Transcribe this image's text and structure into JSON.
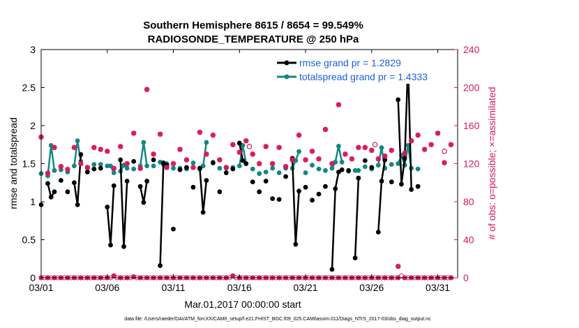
{
  "colors": {
    "rmse": "#000000",
    "spread": "#138684",
    "obs": "#d6185b",
    "legend_text": "#1a5fe0",
    "axis": "#000000"
  },
  "chart_data": {
    "type": "line",
    "title": "Southern Hemisphere 8615 / 8654 = 99.549%",
    "subtitle": "RADIOSONDE_TEMPERATURE @ 250 hPa",
    "xlabel": "Mar.01,2017 00:00:00 start",
    "ylabel": "rmse and totalspread",
    "y2label": "# of obs: o=possible; ×=assimilated",
    "footer": "data file: /Users/raeder/DAI/ATM_forcXX/CAM6_setup/f.e21.FHIST_BGC.f09_025.CAM6assim.011/Diags_NTrS_2017-03/obs_diag_output.nc",
    "xlim": [
      0,
      31.5
    ],
    "ylim": [
      0,
      3
    ],
    "y2lim": [
      0,
      240
    ],
    "x_ticks": [
      0,
      5,
      10,
      15,
      20,
      25,
      30
    ],
    "x_tick_labels": [
      "03/01",
      "03/06",
      "03/11",
      "03/16",
      "03/21",
      "03/26",
      "03/31"
    ],
    "y_ticks": [
      0,
      0.5,
      1,
      1.5,
      2,
      2.5,
      3
    ],
    "y_tick_labels": [
      "0",
      "0.5",
      "1",
      "1.5",
      "2",
      "2.5",
      "3"
    ],
    "y2_ticks": [
      0,
      40,
      80,
      120,
      160,
      200,
      240
    ],
    "y2_tick_labels": [
      "0",
      "40",
      "80",
      "120",
      "160",
      "200",
      "240"
    ],
    "legend": [
      {
        "key": "rmse",
        "label": "rmse grand pr = 1.2829"
      },
      {
        "key": "spread",
        "label": "totalspread grand pr = 1.4333"
      }
    ],
    "x": [
      0,
      0.25,
      0.5,
      0.75,
      1,
      1.25,
      1.5,
      1.75,
      2,
      2.25,
      2.5,
      2.75,
      3,
      3.25,
      3.5,
      3.75,
      4,
      4.25,
      4.5,
      4.75,
      5,
      5.25,
      5.5,
      5.75,
      6,
      6.25,
      6.5,
      6.75,
      7,
      7.25,
      7.5,
      7.75,
      8,
      8.25,
      8.5,
      8.75,
      9,
      9.25,
      9.5,
      9.75,
      10,
      10.25,
      10.5,
      10.75,
      11,
      11.25,
      11.5,
      11.75,
      12,
      12.25,
      12.5,
      12.75,
      13,
      13.25,
      13.5,
      13.75,
      14,
      14.25,
      14.5,
      14.75,
      15,
      15.25,
      15.5,
      15.75,
      16,
      16.25,
      16.5,
      16.75,
      17,
      17.25,
      17.5,
      17.75,
      18,
      18.25,
      18.5,
      18.75,
      19,
      19.25,
      19.5,
      19.75,
      20,
      20.25,
      20.5,
      20.75,
      21,
      21.25,
      21.5,
      21.75,
      22,
      22.25,
      22.5,
      22.75,
      23,
      23.25,
      23.5,
      23.75,
      24,
      24.25,
      24.5,
      24.75,
      25,
      25.25,
      25.5,
      25.75,
      26,
      26.25,
      26.5,
      26.75,
      27,
      27.25,
      27.5,
      27.75,
      28,
      28.25,
      28.5,
      28.75,
      29,
      29.25,
      29.5,
      29.75,
      30,
      30.25,
      30.5,
      30.75,
      31
    ],
    "rmse": [
      0.96,
      null,
      1.24,
      1.06,
      1.13,
      null,
      1.28,
      null,
      1.13,
      null,
      1.25,
      0.96,
      1.62,
      null,
      1.39,
      null,
      1.43,
      null,
      1.44,
      null,
      0.93,
      0.43,
      1.21,
      null,
      1.55,
      0.41,
      1.27,
      null,
      1.53,
      null,
      1.2,
      0.99,
      1.27,
      null,
      1.55,
      null,
      0.16,
      1.51,
      1.48,
      null,
      0.64,
      null,
      1.42,
      null,
      1.45,
      null,
      1.19,
      null,
      1.44,
      0.86,
      1.28,
      null,
      1.51,
      null,
      1.13,
      null,
      1.38,
      null,
      1.43,
      null,
      1.77,
      1.54,
      1.5,
      null,
      1.26,
      null,
      1.13,
      null,
      1.27,
      null,
      1.04,
      null,
      1.03,
      null,
      1.33,
      null,
      1.57,
      0.44,
      1.14,
      null,
      1.19,
      null,
      1.02,
      null,
      1.1,
      null,
      1.2,
      null,
      0.11,
      1.17,
      1.39,
      1.42,
      null,
      1.41,
      null,
      0.26,
      1.31,
      null,
      1.54,
      null,
      1.45,
      null,
      0.6,
      1.27,
      1.55,
      null,
      1.26,
      null,
      2.34,
      1.23,
      1.57,
      2.83,
      1.16,
      null,
      1.2
    ],
    "spread": [
      1.37,
      null,
      1.34,
      1.74,
      1.41,
      null,
      1.42,
      null,
      1.39,
      null,
      1.47,
      1.8,
      1.53,
      null,
      1.44,
      null,
      1.49,
      null,
      1.49,
      null,
      1.47,
      1.47,
      1.38,
      null,
      1.4,
      1.48,
      1.44,
      null,
      1.43,
      null,
      1.47,
      1.78,
      1.47,
      null,
      1.47,
      null,
      1.52,
      1.49,
      1.5,
      null,
      1.44,
      null,
      1.44,
      null,
      1.43,
      null,
      1.51,
      null,
      1.43,
      1.47,
      1.78,
      null,
      1.52,
      null,
      1.44,
      null,
      1.44,
      null,
      1.45,
      null,
      1.47,
      1.74,
      1.5,
      null,
      1.43,
      null,
      1.37,
      null,
      1.39,
      null,
      1.44,
      null,
      1.38,
      null,
      1.44,
      null,
      1.44,
      1.54,
      1.66,
      null,
      1.38,
      null,
      1.48,
      null,
      1.43,
      null,
      1.41,
      null,
      1.44,
      1.52,
      1.73,
      1.52,
      null,
      1.4,
      null,
      1.41,
      1.41,
      null,
      1.46,
      null,
      1.43,
      null,
      1.48,
      1.71,
      1.44,
      null,
      1.49,
      null,
      1.5,
      1.61,
      1.48,
      1.74,
      1.44,
      null,
      1.43
    ],
    "obs_possible": [
      null,
      null,
      null,
      null,
      null,
      null,
      null,
      null,
      null,
      null,
      null,
      null,
      null,
      null,
      null,
      null,
      null,
      null,
      null,
      null,
      null,
      null,
      null,
      null,
      null,
      null,
      null,
      null,
      null,
      null,
      null,
      null,
      null,
      null,
      null,
      null,
      null,
      null,
      null,
      null,
      null,
      null,
      null,
      null,
      null,
      null,
      null,
      null,
      null,
      null,
      null,
      null,
      null,
      null,
      null,
      null,
      null,
      null,
      null,
      null,
      null,
      null,
      null,
      138,
      null,
      null,
      null,
      null,
      null,
      null,
      null,
      null,
      null,
      null,
      null,
      null,
      null,
      null,
      null,
      null,
      null,
      null,
      null,
      null,
      null,
      null,
      null,
      null,
      null,
      null,
      null,
      null,
      null,
      null,
      null,
      null,
      null,
      null,
      null,
      null,
      null,
      140,
      null,
      null,
      null,
      null,
      null,
      null,
      null,
      null,
      null,
      null,
      null,
      null,
      null,
      null,
      null,
      null,
      null,
      null,
      null,
      null,
      133
    ],
    "obs_assimilated": [
      148,
      null,
      110,
      137,
      null,
      null,
      117,
      null,
      null,
      null,
      114,
      137,
      null,
      null,
      136,
      null,
      null,
      null,
      135,
      null,
      133,
      null,
      138,
      null,
      null,
      null,
      null,
      null,
      152,
      null,
      null,
      null,
      null,
      198,
      null,
      null,
      null,
      null,
      null,
      null,
      null,
      null,
      null,
      null,
      null,
      null,
      null,
      null,
      null,
      null,
      null,
      null,
      null,
      null,
      null,
      null,
      null,
      null,
      null,
      null,
      null,
      null,
      null,
      null,
      null,
      null,
      null,
      null,
      null,
      null,
      null,
      null,
      null,
      null,
      null,
      null,
      null,
      null,
      null,
      null,
      null,
      null,
      null,
      null,
      null,
      null,
      null,
      null,
      null,
      null,
      null,
      null,
      null,
      null,
      null,
      null,
      null,
      null,
      null,
      null,
      null,
      null,
      null,
      null,
      null,
      null,
      null,
      null,
      null,
      null,
      null,
      null,
      null,
      null,
      null,
      null,
      null,
      null,
      null,
      null,
      null,
      null,
      null,
      null,
      null
    ],
    "obs_nonzero_x": [
      0,
      0.5,
      1,
      1.5,
      2,
      2.5,
      3,
      3.5,
      4,
      4.5,
      5,
      5.5,
      6,
      6.5,
      7,
      7.5,
      8,
      8.5,
      9,
      9.5,
      10,
      10.5,
      11,
      11.5,
      12,
      12.5,
      13,
      13.5,
      14,
      14.5,
      15,
      15.5,
      16,
      16.5,
      17,
      17.5,
      18,
      18.5,
      19,
      19.5,
      20,
      20.5,
      21,
      21.5,
      22,
      22.5,
      23,
      23.5,
      24,
      24.5,
      25,
      25.5,
      26,
      26.5,
      27,
      27.5,
      28,
      28.5,
      29,
      29.5,
      30,
      30.5,
      31
    ],
    "obs_nonzero_y": [
      148,
      110,
      137,
      117,
      114,
      137,
      120,
      116,
      137,
      135,
      133,
      115,
      138,
      120,
      152,
      115,
      198,
      130,
      151,
      116,
      120,
      135,
      124,
      116,
      153,
      130,
      150,
      124,
      116,
      140,
      132,
      144,
      130,
      120,
      138,
      120,
      137,
      117,
      124,
      150,
      124,
      133,
      125,
      156,
      120,
      182,
      130,
      125,
      137,
      137,
      134,
      125,
      128,
      134,
      12,
      131,
      144,
      150,
      135,
      140,
      152,
      121,
      140
    ],
    "obs_zero_x": [
      0,
      0.25,
      0.5,
      0.75,
      1,
      1.25,
      1.5,
      1.75,
      2,
      2.25,
      2.5,
      2.75,
      3,
      3.25,
      3.5,
      3.75,
      4,
      4.25,
      4.5,
      4.75,
      5,
      5.25,
      5.5,
      5.75,
      6,
      6.25,
      6.5,
      6.75,
      7,
      7.25,
      7.5,
      7.75,
      8,
      8.25,
      8.5,
      8.75,
      9,
      9.25,
      9.5,
      9.75,
      10,
      10.25,
      10.5,
      10.75,
      11,
      11.25,
      11.5,
      11.75,
      12,
      12.25,
      12.5,
      12.75,
      13,
      13.25,
      13.5,
      13.75,
      14,
      14.25,
      14.5,
      14.75,
      15,
      15.25,
      15.5,
      15.75,
      16,
      16.25,
      16.5,
      16.75,
      17,
      17.25,
      17.5,
      17.75,
      18,
      18.25,
      18.5,
      18.75,
      19,
      19.25,
      19.5,
      19.75,
      20,
      20.25,
      20.5,
      20.75,
      21,
      21.25,
      21.5,
      21.75,
      22,
      22.25,
      22.5,
      22.75,
      23,
      23.25,
      23.5,
      23.75,
      24,
      24.25,
      24.5,
      24.75,
      25,
      25.25,
      25.5,
      25.75,
      26,
      26.25,
      26.5,
      26.75,
      27,
      27.25,
      27.5,
      27.75,
      28,
      28.25,
      28.5,
      28.75,
      29,
      29.25,
      29.5,
      29.75,
      30,
      30.25,
      30.5,
      30.75,
      31
    ],
    "obs_zero_y": [
      0,
      0,
      0,
      0,
      0,
      0,
      0,
      0,
      0,
      0,
      0,
      0,
      0,
      0,
      0,
      0,
      0,
      0,
      0,
      0,
      0,
      0,
      2,
      0,
      0,
      0,
      0,
      0,
      1,
      0,
      0,
      0,
      0,
      0,
      0,
      0,
      0,
      0,
      0,
      0,
      0,
      0,
      0,
      0,
      0,
      0,
      0,
      0,
      0,
      0,
      0,
      0,
      0,
      0,
      0,
      0,
      0,
      0,
      2,
      0,
      0,
      0,
      0,
      0,
      0,
      0,
      0,
      0,
      0,
      0,
      0,
      0,
      0,
      0,
      0,
      0,
      0,
      0,
      0,
      0,
      0,
      0,
      0,
      0,
      0,
      0,
      0,
      0,
      0,
      0,
      0,
      0,
      0,
      0,
      0,
      0,
      0,
      0,
      0,
      0,
      0,
      0,
      0,
      0,
      0,
      0,
      0,
      0,
      0,
      2,
      0,
      0,
      0,
      0,
      0,
      0,
      0,
      0,
      0,
      0,
      0,
      0,
      0,
      0,
      0
    ]
  }
}
